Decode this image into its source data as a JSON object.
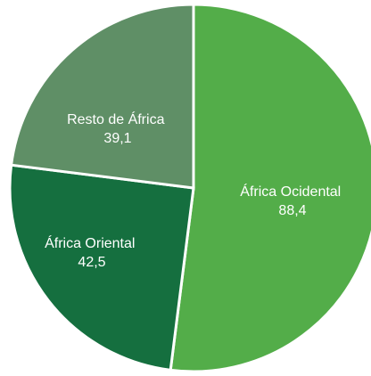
{
  "chart_data": {
    "type": "pie",
    "title": "",
    "slices": [
      {
        "label": "África Ocidental",
        "value": 88.4,
        "value_text": "88,4",
        "color": "#53ad49"
      },
      {
        "label": "África Oriental",
        "value": 42.5,
        "value_text": "42,5",
        "color": "#156f3f"
      },
      {
        "label": "Resto de África",
        "value": 39.1,
        "value_text": "39,1",
        "color": "#5f8f66"
      }
    ],
    "start_angle_deg": 0,
    "direction": "clockwise",
    "data_labels": "inside",
    "legend": "none"
  }
}
